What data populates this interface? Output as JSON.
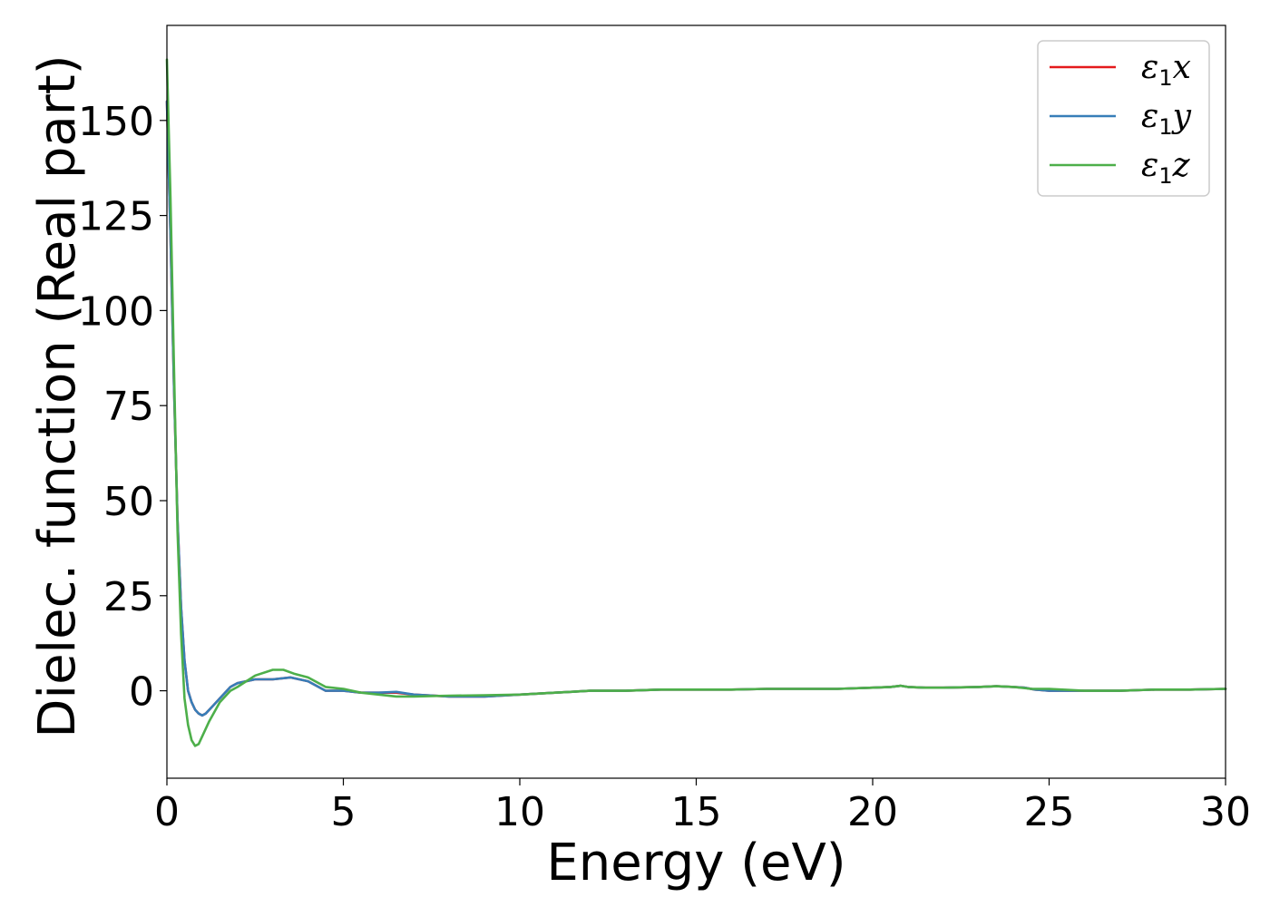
{
  "chart_data": {
    "type": "line",
    "xlabel": "Energy (eV)",
    "ylabel": "Dielec. function (Real part)",
    "xlim": [
      0,
      30
    ],
    "ylim": [
      -23,
      175
    ],
    "xticks": [
      0,
      5,
      10,
      15,
      20,
      25,
      30
    ],
    "yticks": [
      0,
      25,
      50,
      75,
      100,
      125,
      150
    ],
    "grid": false,
    "legend_position": "top-right",
    "series": [
      {
        "name": "ε1x",
        "symbol": "ε",
        "subscript": "1",
        "axis": "x",
        "color": "#e41a1c",
        "x": [
          0,
          0.1,
          0.2,
          0.3,
          0.4,
          0.5,
          0.6,
          0.7,
          0.8,
          0.9,
          1.0,
          1.1,
          1.3,
          1.5,
          1.8,
          2.0,
          2.5,
          3.0,
          3.5,
          4.0,
          4.5,
          5.0,
          5.5,
          6.0,
          6.5,
          7.0,
          8.0,
          9.0,
          10.0,
          11.0,
          12.0,
          13.0,
          14.0,
          15.0,
          16.0,
          17.0,
          18.0,
          19.0,
          20.0,
          20.5,
          20.8,
          21.0,
          21.5,
          22.0,
          23.0,
          23.5,
          24.0,
          24.3,
          24.6,
          25.0,
          26.0,
          27.0,
          28.0,
          29.0,
          30.0
        ],
        "y": [
          155,
          120,
          80,
          45,
          22,
          8,
          0,
          -3,
          -5,
          -6,
          -6.5,
          -6,
          -4,
          -2,
          1,
          2,
          3,
          3,
          3.5,
          2.5,
          0,
          0,
          -0.5,
          -0.5,
          -0.5,
          -1,
          -1.5,
          -1.5,
          -1,
          -0.5,
          0,
          0,
          0.3,
          0.3,
          0.3,
          0.5,
          0.5,
          0.5,
          0.8,
          1.0,
          1.3,
          1.0,
          0.8,
          0.8,
          1.0,
          1.2,
          1.0,
          0.8,
          0.3,
          0,
          0,
          0,
          0.3,
          0.3,
          0.5
        ]
      },
      {
        "name": "ε1y",
        "symbol": "ε",
        "subscript": "1",
        "axis": "y",
        "color": "#377eb8",
        "x": [
          0,
          0.1,
          0.2,
          0.3,
          0.4,
          0.5,
          0.6,
          0.7,
          0.8,
          0.9,
          1.0,
          1.1,
          1.3,
          1.5,
          1.8,
          2.0,
          2.5,
          3.0,
          3.5,
          4.0,
          4.5,
          5.0,
          5.5,
          6.0,
          6.5,
          7.0,
          8.0,
          9.0,
          10.0,
          11.0,
          12.0,
          13.0,
          14.0,
          15.0,
          16.0,
          17.0,
          18.0,
          19.0,
          20.0,
          20.5,
          20.8,
          21.0,
          21.5,
          22.0,
          23.0,
          23.5,
          24.0,
          24.3,
          24.6,
          25.0,
          26.0,
          27.0,
          28.0,
          29.0,
          30.0
        ],
        "y": [
          155,
          120,
          80,
          45,
          22,
          8,
          0,
          -3,
          -5,
          -6,
          -6.5,
          -6,
          -4,
          -2,
          1,
          2,
          3,
          3,
          3.5,
          2.5,
          0,
          0,
          -0.5,
          -0.5,
          -0.3,
          -1,
          -1.5,
          -1.5,
          -1,
          -0.5,
          0,
          0,
          0.3,
          0.3,
          0.3,
          0.5,
          0.5,
          0.5,
          0.8,
          1.0,
          1.3,
          1.0,
          0.8,
          0.8,
          1.0,
          1.2,
          1.0,
          0.8,
          0.3,
          0,
          0,
          0,
          0.3,
          0.3,
          0.5
        ]
      },
      {
        "name": "ε1z",
        "symbol": "ε",
        "subscript": "1",
        "axis": "z",
        "color": "#4daf4a",
        "x": [
          0,
          0.1,
          0.2,
          0.3,
          0.4,
          0.5,
          0.6,
          0.7,
          0.8,
          0.9,
          1.0,
          1.2,
          1.5,
          1.8,
          2.0,
          2.5,
          3.0,
          3.3,
          3.6,
          4.0,
          4.5,
          5.0,
          5.5,
          6.0,
          6.5,
          7.0,
          8.0,
          9.0,
          10.0,
          11.0,
          12.0,
          13.0,
          14.0,
          15.0,
          16.0,
          17.0,
          18.0,
          19.0,
          20.0,
          20.5,
          20.8,
          21.0,
          21.5,
          22.0,
          23.0,
          23.5,
          24.0,
          24.5,
          25.0,
          26.0,
          27.0,
          28.0,
          29.0,
          30.0
        ],
        "y": [
          166,
          130,
          85,
          42,
          15,
          -2,
          -9,
          -13,
          -14.5,
          -14,
          -12,
          -8,
          -3,
          0,
          1,
          4,
          5.5,
          5.5,
          4.5,
          3.5,
          1,
          0.5,
          -0.5,
          -1,
          -1.5,
          -1.5,
          -1.3,
          -1.2,
          -1,
          -0.5,
          0,
          0,
          0.3,
          0.3,
          0.3,
          0.5,
          0.5,
          0.5,
          0.8,
          1.0,
          1.3,
          1.0,
          0.8,
          0.8,
          1.0,
          1.2,
          1.0,
          0.5,
          0.5,
          0,
          0,
          0.3,
          0.3,
          0.5
        ]
      }
    ]
  }
}
